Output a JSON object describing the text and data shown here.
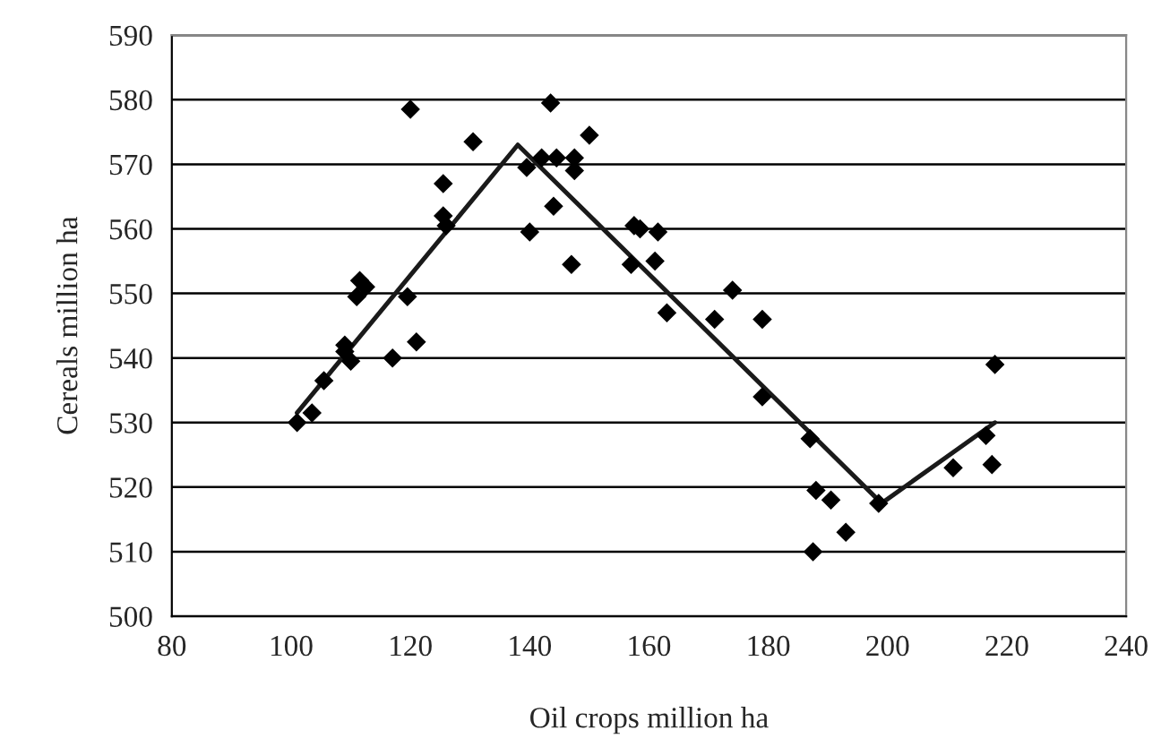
{
  "chart_data": {
    "type": "scatter",
    "xlabel": "Oil crops million ha",
    "ylabel": "Cereals million ha",
    "xlim": [
      80,
      240
    ],
    "xticks": [
      80,
      100,
      120,
      140,
      160,
      180,
      200,
      220,
      240
    ],
    "ylim": [
      500,
      590
    ],
    "yticks": [
      500,
      510,
      520,
      530,
      540,
      550,
      560,
      570,
      580,
      590
    ],
    "grid": "y",
    "legend": false,
    "series": [
      {
        "marker": "diamond",
        "color": "#000000",
        "x": [
          101,
          103.5,
          105.5,
          109,
          109,
          110,
          111,
          111.5,
          112.5,
          117,
          119.5,
          120,
          121,
          125.5,
          125.5,
          126,
          130.5,
          139.5,
          140,
          142,
          143.5,
          144,
          144.5,
          147,
          147.5,
          147.5,
          150,
          157,
          157.5,
          158.5,
          161,
          161.5,
          163,
          171,
          174,
          179,
          179,
          187,
          187.5,
          188,
          190.5,
          193,
          198.5,
          211,
          216.5,
          217.5,
          218
        ],
        "values": [
          530,
          531.5,
          536.5,
          542,
          541,
          539.5,
          549.5,
          552,
          551,
          540,
          549.5,
          578.5,
          542.5,
          567,
          562,
          560.5,
          573.5,
          569.5,
          559.5,
          571,
          579.5,
          563.5,
          571,
          554.5,
          571,
          569,
          574.5,
          554.5,
          560.5,
          560,
          555,
          559.5,
          547,
          546,
          550.5,
          534,
          546,
          527.5,
          510,
          519.5,
          518,
          513,
          517.5,
          523,
          528,
          523.5,
          539
        ]
      },
      {
        "type": "line",
        "marker": "none",
        "line_style": "solid",
        "color": "#1a1a1a",
        "x": [
          101,
          138,
          199,
          218
        ],
        "values": [
          531.5,
          573,
          517.5,
          530
        ]
      }
    ]
  }
}
